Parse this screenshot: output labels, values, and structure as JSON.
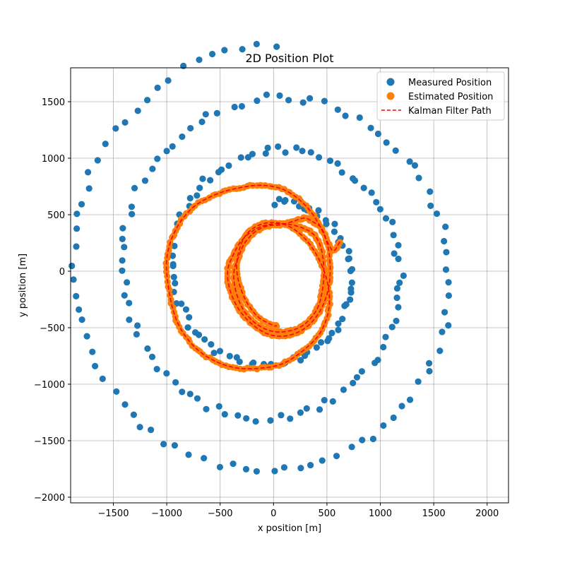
{
  "chart_data": {
    "type": "scatter",
    "title": "2D Position Plot",
    "xlabel": "x position [m]",
    "ylabel": "y position [m]",
    "xlim": [
      -1900,
      2200
    ],
    "ylim": [
      -2050,
      1800
    ],
    "xticks": [
      -1500,
      -1000,
      -500,
      0,
      500,
      1000,
      1500,
      2000
    ],
    "yticks": [
      -2000,
      -1500,
      -1000,
      -500,
      0,
      500,
      1000,
      1500
    ],
    "xtick_labels": [
      "−1500",
      "−1000",
      "−500",
      "0",
      "500",
      "1000",
      "1500",
      "2000"
    ],
    "ytick_labels": [
      "−2000",
      "−1500",
      "−1000",
      "−500",
      "0",
      "500",
      "1000",
      "1500"
    ],
    "grid": true,
    "legend_position": "top-right",
    "colors": {
      "measured": "#1f77b4",
      "estimated": "#ff7f0e",
      "kalman": "#ff0000"
    },
    "series": [
      {
        "name": "Measured Position",
        "kind": "scatter",
        "description": "Noisy spiral measurements expanding from r≈600 m to r≈2000 m",
        "spiral": {
          "r_start": 600,
          "r_end": 2000,
          "turns": 3,
          "start_angle_deg": 90,
          "n_points": 260
        }
      },
      {
        "name": "Estimated Position",
        "kind": "scatter",
        "description": "Kalman estimates forming inner spiral from (620,260) through r≈400 to r≈850 and end near (30,-480)",
        "points": [
          [
            620,
            260
          ],
          [
            560,
            180
          ],
          [
            500,
            270
          ],
          [
            450,
            380
          ],
          [
            380,
            430
          ],
          [
            290,
            470
          ],
          [
            180,
            440
          ],
          [
            60,
            410
          ],
          [
            -60,
            400
          ],
          [
            -170,
            350
          ],
          [
            -270,
            250
          ],
          [
            -330,
            120
          ],
          [
            -370,
            0
          ],
          [
            -360,
            -150
          ],
          [
            -290,
            -330
          ],
          [
            -170,
            -460
          ],
          [
            -20,
            -530
          ],
          [
            140,
            -530
          ],
          [
            290,
            -470
          ],
          [
            410,
            -330
          ],
          [
            460,
            -150
          ],
          [
            470,
            40
          ],
          [
            440,
            220
          ],
          [
            370,
            330
          ],
          [
            250,
            390
          ],
          [
            100,
            420
          ],
          [
            -60,
            410
          ],
          [
            -190,
            360
          ],
          [
            -300,
            270
          ],
          [
            -380,
            140
          ],
          [
            -430,
            0
          ],
          [
            -410,
            -160
          ],
          [
            -330,
            -330
          ],
          [
            -200,
            -470
          ],
          [
            -40,
            -560
          ],
          [
            130,
            -570
          ],
          [
            300,
            -500
          ],
          [
            430,
            -360
          ],
          [
            510,
            -170
          ],
          [
            530,
            40
          ],
          [
            500,
            250
          ],
          [
            410,
            440
          ],
          [
            280,
            600
          ],
          [
            100,
            720
          ],
          [
            -100,
            760
          ],
          [
            -310,
            740
          ],
          [
            -540,
            680
          ],
          [
            -760,
            560
          ],
          [
            -920,
            360
          ],
          [
            -1000,
            110
          ],
          [
            -980,
            -170
          ],
          [
            -910,
            -430
          ],
          [
            -780,
            -630
          ],
          [
            -600,
            -770
          ],
          [
            -380,
            -850
          ],
          [
            -150,
            -860
          ],
          [
            80,
            -820
          ],
          [
            280,
            -700
          ],
          [
            440,
            -540
          ],
          [
            520,
            -320
          ],
          [
            500,
            -80
          ],
          [
            400,
            150
          ],
          [
            250,
            330
          ],
          [
            80,
            420
          ],
          [
            -100,
            420
          ],
          [
            -250,
            330
          ],
          [
            -330,
            160
          ],
          [
            -340,
            -30
          ],
          [
            -270,
            -240
          ],
          [
            -150,
            -400
          ],
          [
            0,
            -480
          ],
          [
            30,
            -480
          ]
        ]
      },
      {
        "name": "Kalman Filter Path",
        "kind": "line",
        "style": "dashed",
        "description": "Dashed path following the estimated positions"
      }
    ]
  }
}
